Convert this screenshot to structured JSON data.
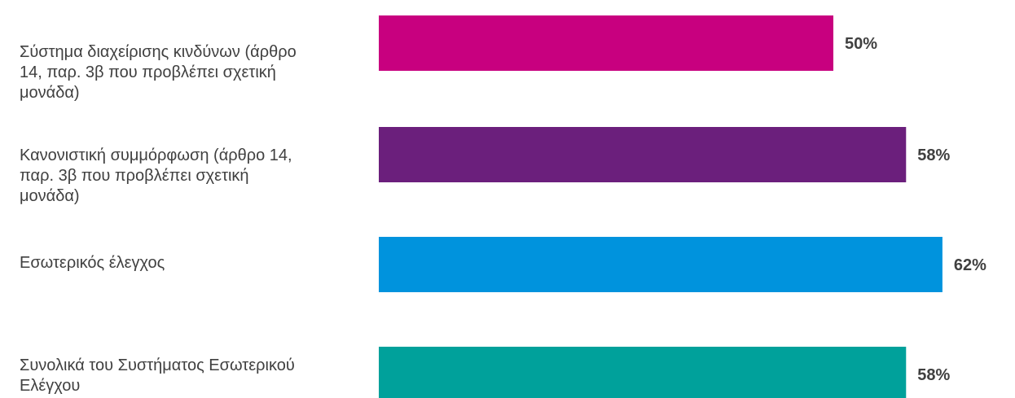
{
  "chart_data": {
    "type": "bar",
    "orientation": "horizontal",
    "categories": [
      "Σύστημα διαχείρισης κινδύνων (άρθρο\n14, παρ. 3β που προβλέπει σχετική\nμονάδα)",
      "Κανονιστική συμμόρφωση (άρθρο 14,\nπαρ. 3β που προβλέπει σχετική\nμονάδα)",
      "Εσωτερικός έλεγχος",
      "Συνολικά του Συστήματος Εσωτερικού\nΕλέγχου"
    ],
    "values": [
      50,
      58,
      62,
      58
    ],
    "value_labels": [
      "50%",
      "58%",
      "62%",
      "58%"
    ],
    "colors": [
      "#c8007f",
      "#6b1f7c",
      "#0093dd",
      "#00a19b"
    ],
    "xlim": [
      0,
      100
    ],
    "grid": false,
    "legend": "none"
  }
}
